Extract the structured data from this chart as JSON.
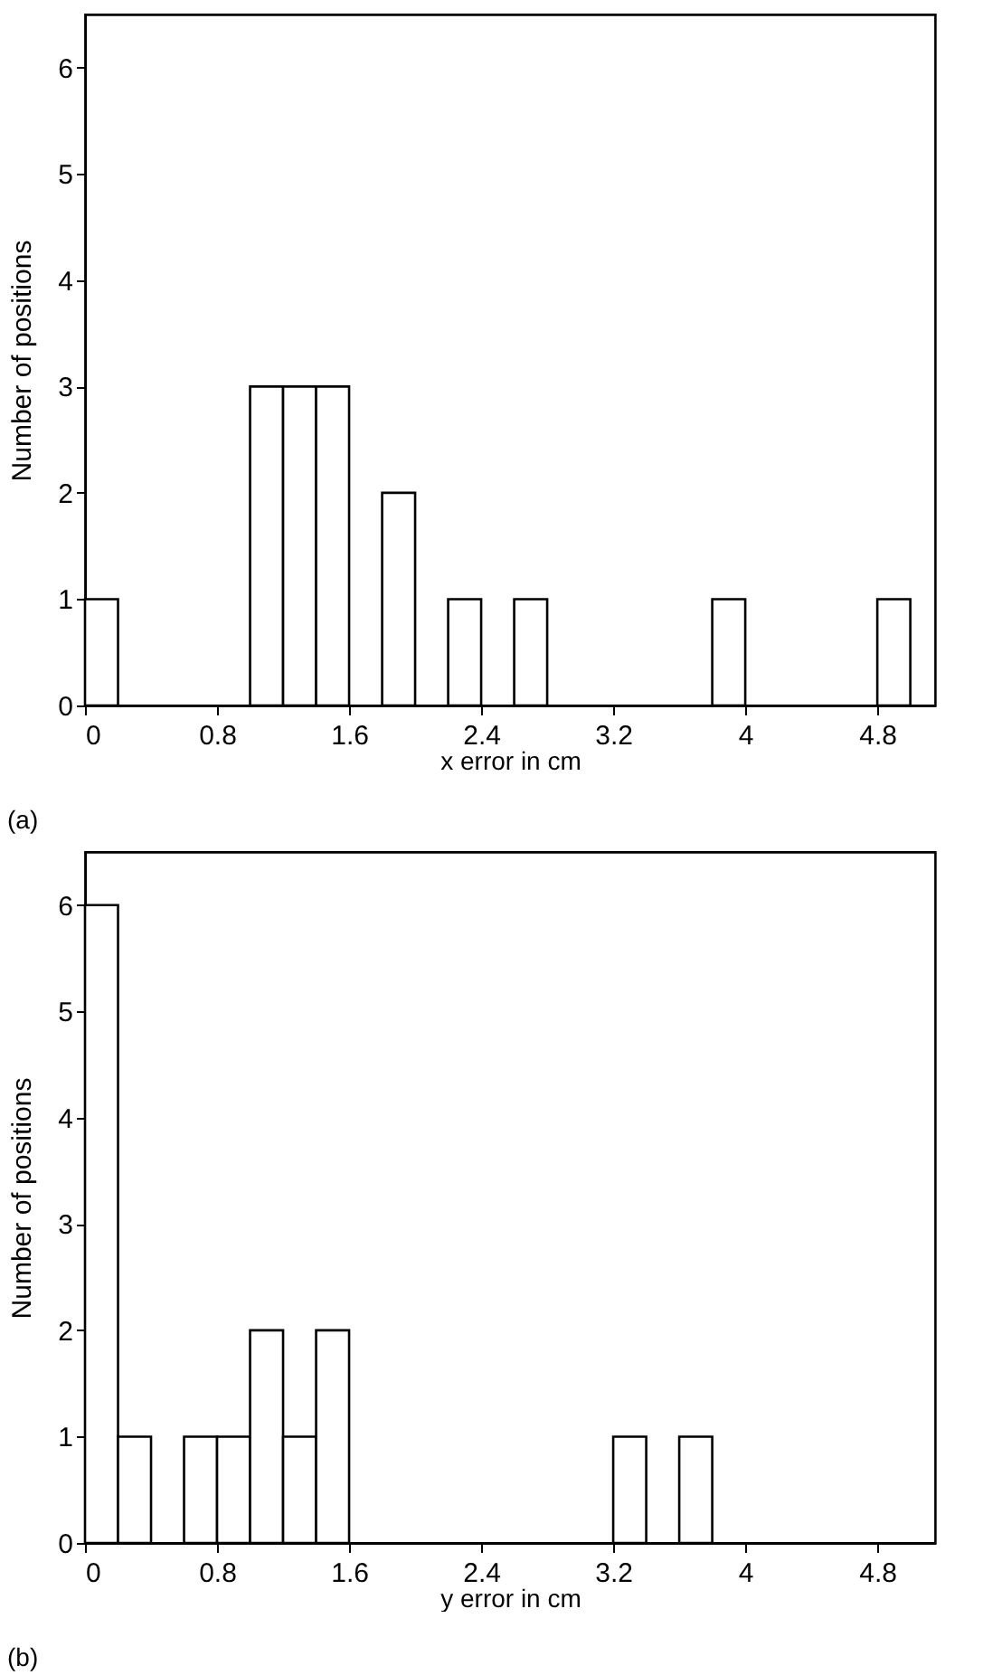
{
  "chart_data": [
    {
      "type": "histogram",
      "xlabel": "x error in cm",
      "ylabel": "Number of positions",
      "annotations": [
        "(a)"
      ],
      "bins": [
        0,
        0.2,
        0.4,
        0.6,
        0.8,
        1.0,
        1.2,
        1.4,
        1.6,
        1.8,
        2.0,
        2.2,
        2.4,
        2.6,
        2.8,
        3.0,
        3.2,
        3.4,
        3.6,
        3.8,
        4.0,
        4.2,
        4.4,
        4.6,
        4.8,
        5.0
      ],
      "values": [
        1,
        0,
        0,
        0,
        0,
        3,
        3,
        3,
        0,
        2,
        0,
        1,
        0,
        1,
        0,
        0,
        0,
        0,
        0,
        1,
        0,
        0,
        0,
        0,
        1
      ],
      "color": "#ffffff",
      "xlim": [
        0,
        5.15
      ],
      "xticks": [
        0,
        0.8,
        1.6,
        2.4,
        3.2,
        4,
        4.8
      ],
      "ylim": [
        0,
        6.5
      ],
      "yticks": [
        0,
        1,
        2,
        3,
        4,
        5,
        6
      ]
    },
    {
      "type": "histogram",
      "xlabel": "y error in cm",
      "ylabel": "Number of positions",
      "annotations": [
        "(b)"
      ],
      "bins": [
        0,
        0.2,
        0.4,
        0.6,
        0.8,
        1.0,
        1.2,
        1.4,
        1.6,
        1.8,
        2.0,
        2.2,
        2.4,
        2.6,
        2.8,
        3.0,
        3.2,
        3.4,
        3.6,
        3.8
      ],
      "values": [
        6,
        1,
        0,
        1,
        1,
        2,
        1,
        2,
        0,
        0,
        0,
        0,
        0,
        0,
        0,
        0,
        1,
        0,
        1
      ],
      "color": "#ffffff",
      "xlim": [
        0,
        5.15
      ],
      "xticks": [
        0,
        0.8,
        1.6,
        2.4,
        3.2,
        4,
        4.8
      ],
      "ylim": [
        0,
        6.5
      ],
      "yticks": [
        0,
        1,
        2,
        3,
        4,
        5,
        6
      ]
    }
  ]
}
